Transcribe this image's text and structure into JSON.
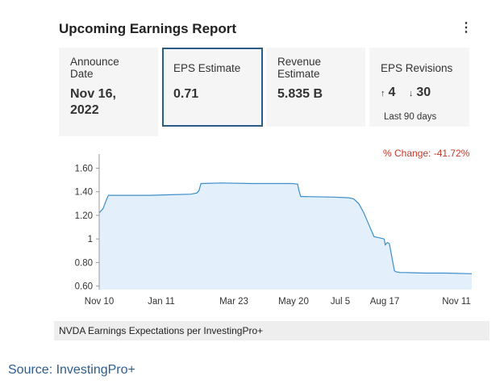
{
  "card": {
    "title": "Upcoming Earnings Report",
    "menu_icon": "more-vertical-icon",
    "tiles": {
      "announce": {
        "label": "Announce Date",
        "label_line1": "Announce",
        "label_line2": "Date",
        "value_line1": "Nov 16,",
        "value_line2": "2022"
      },
      "eps": {
        "label": "EPS Estimate",
        "value": "0.71"
      },
      "revenue": {
        "label_line1": "Revenue",
        "label_line2": "Estimate",
        "value": "5.835 B"
      },
      "revisions": {
        "label": "EPS Revisions",
        "up_value": "4",
        "down_value": "30",
        "note": "Last 90 days"
      }
    },
    "pct_change": "% Change: -41.72%",
    "caption": "NVDA Earnings Expectations per InvestingPro+"
  },
  "source": "Source: InvestingPro+",
  "colors": {
    "accent": "#2a5d8a",
    "line": "#3d8ec9",
    "fill": "#e3effb",
    "negative": "#c0392b"
  },
  "chart_data": {
    "type": "area",
    "x_tick_labels": [
      "Nov 10",
      "Jan 11",
      "Mar 23",
      "May 20",
      "Jul 5",
      "Aug 17",
      "Nov 11"
    ],
    "y_tick_labels": [
      "1.60",
      "1.40",
      "1.20",
      "1",
      "0.80",
      "0.60"
    ],
    "y_ticks": [
      1.6,
      1.4,
      1.2,
      1.0,
      0.8,
      0.6
    ],
    "ylim": [
      0.57,
      1.72
    ],
    "x_range": [
      0,
      366
    ],
    "series": [
      {
        "x": [
          0,
          4,
          7,
          9,
          12,
          30,
          50,
          70,
          90,
          96,
          98,
          100,
          120,
          150,
          180,
          190,
          195,
          196,
          198,
          200,
          230,
          245,
          250,
          255,
          260,
          265,
          270,
          275,
          280,
          281,
          283,
          285,
          290,
          291,
          292,
          293,
          295,
          300,
          320,
          340,
          366
        ],
        "y": [
          1.22,
          1.26,
          1.33,
          1.37,
          1.37,
          1.37,
          1.37,
          1.375,
          1.38,
          1.39,
          1.41,
          1.47,
          1.475,
          1.47,
          1.47,
          1.47,
          1.465,
          1.42,
          1.36,
          1.36,
          1.355,
          1.35,
          1.34,
          1.3,
          1.22,
          1.12,
          1.02,
          1.01,
          1.0,
          0.95,
          0.97,
          0.96,
          0.73,
          0.725,
          0.72,
          0.72,
          0.715,
          0.715,
          0.71,
          0.71,
          0.705
        ]
      }
    ],
    "grid": false
  }
}
